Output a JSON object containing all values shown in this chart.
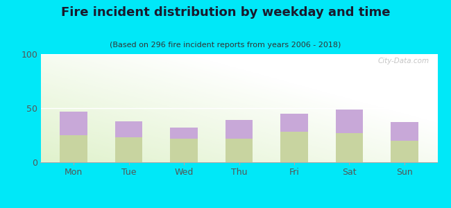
{
  "title": "Fire incident distribution by weekday and time",
  "subtitle": "(Based on 296 fire incident reports from years 2006 - 2018)",
  "days": [
    "Mon",
    "Tue",
    "Wed",
    "Thu",
    "Fri",
    "Sat",
    "Sun"
  ],
  "pm_values": [
    25,
    23,
    22,
    22,
    28,
    27,
    20
  ],
  "am_values": [
    22,
    15,
    10,
    17,
    17,
    22,
    17
  ],
  "am_color": "#c8a8d8",
  "pm_color": "#c8d4a0",
  "ylim": [
    0,
    100
  ],
  "yticks": [
    0,
    50,
    100
  ],
  "background_outer": "#00e8f8",
  "bar_width": 0.5,
  "watermark": "City-Data.com",
  "title_fontsize": 13,
  "subtitle_fontsize": 8,
  "tick_fontsize": 9,
  "legend_fontsize": 9,
  "title_color": "#1a1a2e",
  "subtitle_color": "#333333",
  "tick_color": "#555555"
}
